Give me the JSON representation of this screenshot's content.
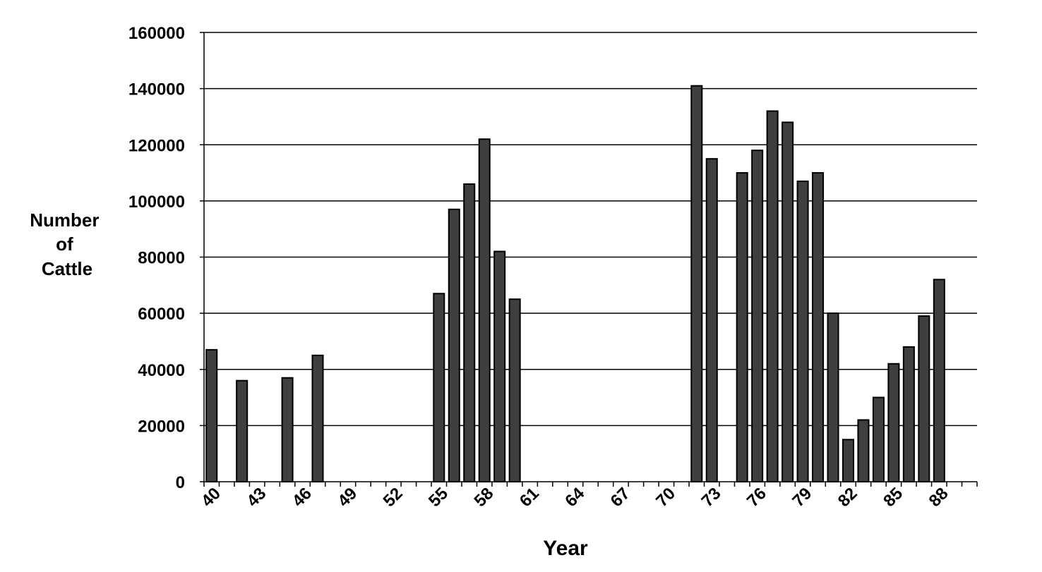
{
  "chart_data": {
    "type": "bar",
    "xlabel": "Year",
    "ylabel": [
      "Number",
      "of",
      "Cattle"
    ],
    "ylim": [
      0,
      160000
    ],
    "yticks": [
      "0",
      "20000",
      "40000",
      "60000",
      "80000",
      "100000",
      "120000",
      "140000",
      "160000"
    ],
    "x_range": [
      40,
      90
    ],
    "xticks": [
      "40",
      "43",
      "46",
      "49",
      "52",
      "55",
      "58",
      "61",
      "64",
      "67",
      "70",
      "73",
      "76",
      "79",
      "82",
      "85",
      "88"
    ],
    "grid": "horizontal",
    "legend": "none",
    "bar_color": "#3f3f3f",
    "x": [
      40,
      42,
      45,
      47,
      55,
      56,
      57,
      58,
      59,
      60,
      72,
      73,
      75,
      76,
      77,
      78,
      79,
      80,
      81,
      82,
      83,
      84,
      85,
      86,
      87,
      88
    ],
    "values": [
      47000,
      36000,
      37000,
      45000,
      67000,
      97000,
      106000,
      122000,
      82000,
      65000,
      141000,
      115000,
      110000,
      118000,
      132000,
      128000,
      107000,
      110000,
      60000,
      15000,
      22000,
      30000,
      42000,
      48000,
      59000,
      72000
    ]
  }
}
